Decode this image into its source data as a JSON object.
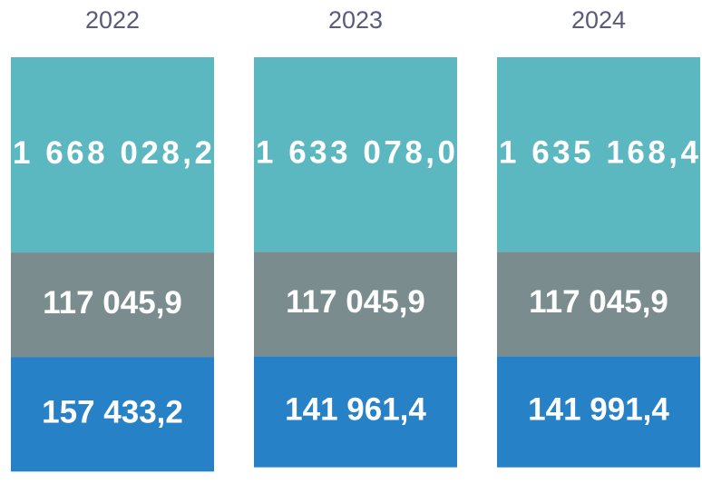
{
  "chart_data": {
    "type": "bar",
    "stacked": true,
    "categories": [
      "2022",
      "2023",
      "2024"
    ],
    "series": [
      {
        "color": "#2681c6",
        "values": [
          157433.2,
          141961.4,
          141991.4
        ],
        "value_labels": [
          "157 433,2",
          "141 961,4",
          "141 991,4"
        ]
      },
      {
        "color": "#7a8c8e",
        "values": [
          117045.9,
          117045.9,
          117045.9
        ],
        "value_labels": [
          "117 045,9",
          "117 045,9",
          "117 045,9"
        ]
      },
      {
        "color": "#5bb7c0",
        "values": [
          1668028.2,
          1633078.0,
          1635168.4
        ],
        "value_labels": [
          "1 668 028,2",
          "1 633 078,0",
          "1 635 168,4"
        ]
      }
    ]
  }
}
